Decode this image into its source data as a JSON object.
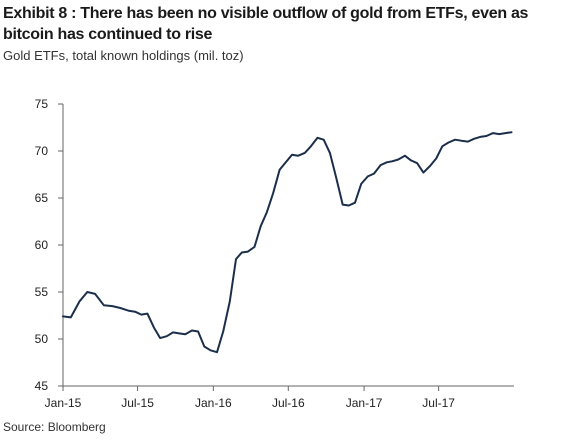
{
  "header": {
    "title": "Exhibit 8 : There has been no visible outflow of gold from ETFs, even as bitcoin has continued to rise",
    "subtitle": "Gold ETFs, total known holdings (mil. toz)"
  },
  "footer": {
    "source": "Source: Bloomberg"
  },
  "colors": {
    "line": "#1c2f4a",
    "axis": "#666666",
    "text": "#222222"
  },
  "chart_data": {
    "type": "line",
    "title": "Exhibit 8 : There has been no visible outflow of gold from ETFs, even as bitcoin has continued to rise",
    "subtitle": "Gold ETFs, total known holdings (mil. toz)",
    "xlabel": "",
    "ylabel": "",
    "ylim": [
      45,
      75
    ],
    "yticks": [
      45,
      50,
      55,
      60,
      65,
      70,
      75
    ],
    "xlim": [
      "2015-01-01",
      "2017-12-31"
    ],
    "xticks": [
      {
        "date": "2015-01-01",
        "label": "Jan-15"
      },
      {
        "date": "2015-07-01",
        "label": "Jul-15"
      },
      {
        "date": "2016-01-01",
        "label": "Jan-16"
      },
      {
        "date": "2016-07-01",
        "label": "Jul-16"
      },
      {
        "date": "2017-01-01",
        "label": "Jan-17"
      },
      {
        "date": "2017-07-01",
        "label": "Jul-17"
      }
    ],
    "grid": false,
    "legend": "none",
    "series": [
      {
        "x": [
          "2015-01-01",
          "2015-01-20",
          "2015-02-10",
          "2015-03-01",
          "2015-03-20",
          "2015-04-10",
          "2015-05-01",
          "2015-05-20",
          "2015-06-10",
          "2015-06-25",
          "2015-07-10",
          "2015-07-25",
          "2015-08-10",
          "2015-08-25",
          "2015-09-10",
          "2015-09-25",
          "2015-10-10",
          "2015-10-25",
          "2015-11-10",
          "2015-11-25",
          "2015-12-10",
          "2015-12-25",
          "2016-01-10",
          "2016-01-25",
          "2016-02-10",
          "2016-02-25",
          "2016-03-10",
          "2016-03-25",
          "2016-04-10",
          "2016-04-25",
          "2016-05-10",
          "2016-05-25",
          "2016-06-10",
          "2016-06-25",
          "2016-07-10",
          "2016-07-25",
          "2016-08-10",
          "2016-08-25",
          "2016-09-10",
          "2016-09-25",
          "2016-10-10",
          "2016-10-25",
          "2016-11-10",
          "2016-11-25",
          "2016-12-10",
          "2016-12-25",
          "2017-01-10",
          "2017-01-25",
          "2017-02-10",
          "2017-02-25",
          "2017-03-10",
          "2017-03-25",
          "2017-04-10",
          "2017-04-25",
          "2017-05-10",
          "2017-05-25",
          "2017-06-10",
          "2017-06-25",
          "2017-07-10",
          "2017-07-25",
          "2017-08-10",
          "2017-08-25",
          "2017-09-10",
          "2017-09-25",
          "2017-10-10",
          "2017-10-25",
          "2017-11-10",
          "2017-11-25",
          "2017-12-10",
          "2017-12-25"
        ],
        "values": [
          52.4,
          52.3,
          54.0,
          55.0,
          54.8,
          53.6,
          53.5,
          53.3,
          53.0,
          52.9,
          52.6,
          52.7,
          51.2,
          50.1,
          50.3,
          50.7,
          50.6,
          50.5,
          50.9,
          50.8,
          49.2,
          48.8,
          48.6,
          50.8,
          54.0,
          58.5,
          59.2,
          59.3,
          59.8,
          62.0,
          63.5,
          65.5,
          68.0,
          68.8,
          69.6,
          69.5,
          69.8,
          70.5,
          71.4,
          71.2,
          69.8,
          67.2,
          64.3,
          64.2,
          64.5,
          66.5,
          67.3,
          67.6,
          68.5,
          68.8,
          68.9,
          69.1,
          69.5,
          69.0,
          68.7,
          67.7,
          68.4,
          69.2,
          70.5,
          70.9,
          71.2,
          71.1,
          71.0,
          71.3,
          71.5,
          71.6,
          71.9,
          71.8,
          71.9,
          72.0
        ]
      }
    ]
  }
}
